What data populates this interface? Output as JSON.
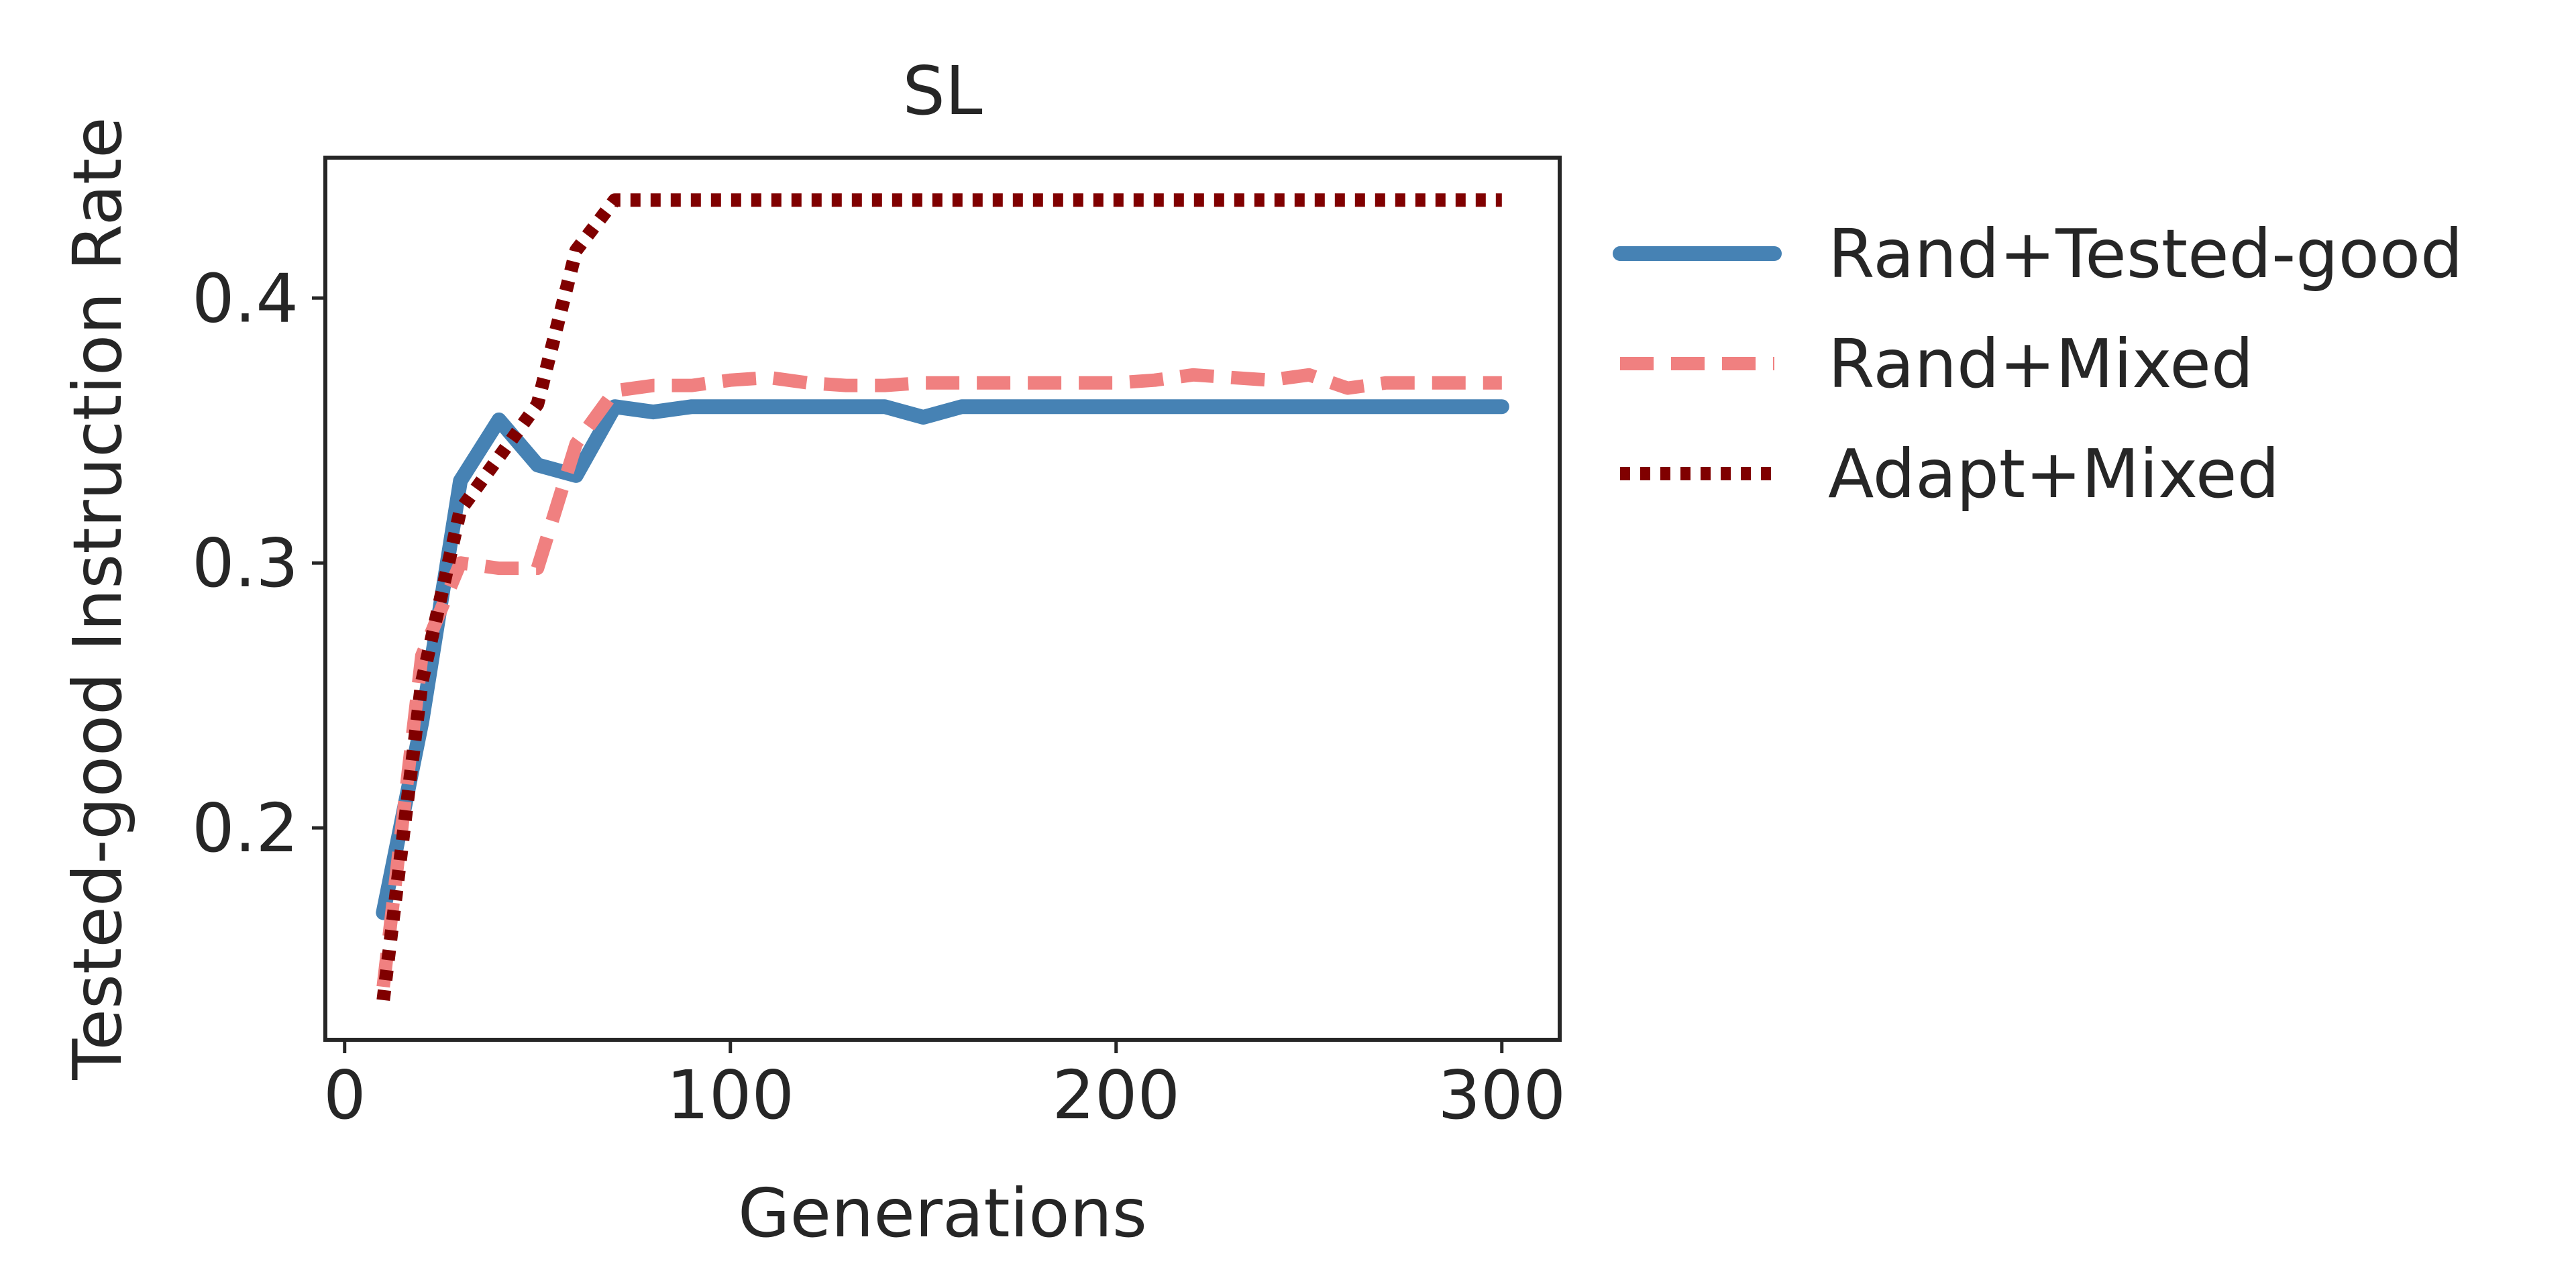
{
  "chart_data": {
    "type": "line",
    "title": "SL",
    "xlabel": "Generations",
    "ylabel": "Tested-good Instruction Rate",
    "xlim": [
      -5,
      315
    ],
    "ylim": [
      0.12,
      0.453
    ],
    "xticks": [
      0,
      100,
      200,
      300
    ],
    "xtick_labels": [
      "0",
      "100",
      "200",
      "300"
    ],
    "yticks": [
      0.2,
      0.3,
      0.4
    ],
    "ytick_labels": [
      "0.2",
      "0.3",
      "0.4"
    ],
    "grid": false,
    "legend_position": "outside-right",
    "series": [
      {
        "name": "Rand+Tested-good",
        "color": "#4682b4",
        "style": "solid",
        "x": [
          10,
          20,
          30,
          40,
          50,
          60,
          70,
          80,
          90,
          100,
          110,
          120,
          130,
          140,
          150,
          160,
          170,
          180,
          190,
          200,
          210,
          220,
          230,
          240,
          250,
          260,
          270,
          280,
          290,
          300
        ],
        "y": [
          0.168,
          0.24,
          0.331,
          0.354,
          0.337,
          0.333,
          0.359,
          0.357,
          0.359,
          0.359,
          0.359,
          0.359,
          0.359,
          0.359,
          0.355,
          0.359,
          0.359,
          0.359,
          0.359,
          0.359,
          0.359,
          0.359,
          0.359,
          0.359,
          0.359,
          0.359,
          0.359,
          0.359,
          0.359,
          0.359
        ]
      },
      {
        "name": "Rand+Mixed",
        "color": "#f08080",
        "style": "dashed",
        "x": [
          10,
          20,
          30,
          40,
          50,
          60,
          70,
          80,
          90,
          100,
          110,
          120,
          130,
          140,
          150,
          160,
          170,
          180,
          190,
          200,
          210,
          220,
          230,
          240,
          250,
          260,
          270,
          280,
          290,
          300
        ],
        "y": [
          0.14,
          0.265,
          0.3,
          0.298,
          0.298,
          0.345,
          0.365,
          0.367,
          0.367,
          0.369,
          0.37,
          0.368,
          0.367,
          0.367,
          0.368,
          0.368,
          0.368,
          0.368,
          0.368,
          0.368,
          0.369,
          0.371,
          0.37,
          0.369,
          0.371,
          0.366,
          0.368,
          0.368,
          0.368,
          0.368
        ]
      },
      {
        "name": "Adapt+Mixed",
        "color": "#800000",
        "style": "dotted",
        "x": [
          10,
          20,
          30,
          40,
          50,
          60,
          70,
          80,
          90,
          100,
          110,
          120,
          130,
          140,
          150,
          160,
          170,
          180,
          190,
          200,
          210,
          220,
          230,
          240,
          250,
          260,
          270,
          280,
          290,
          300
        ],
        "y": [
          0.135,
          0.255,
          0.32,
          0.34,
          0.36,
          0.418,
          0.437,
          0.437,
          0.437,
          0.437,
          0.437,
          0.437,
          0.437,
          0.437,
          0.437,
          0.437,
          0.437,
          0.437,
          0.437,
          0.437,
          0.437,
          0.437,
          0.437,
          0.437,
          0.437,
          0.437,
          0.437,
          0.437,
          0.437,
          0.437
        ]
      }
    ]
  }
}
